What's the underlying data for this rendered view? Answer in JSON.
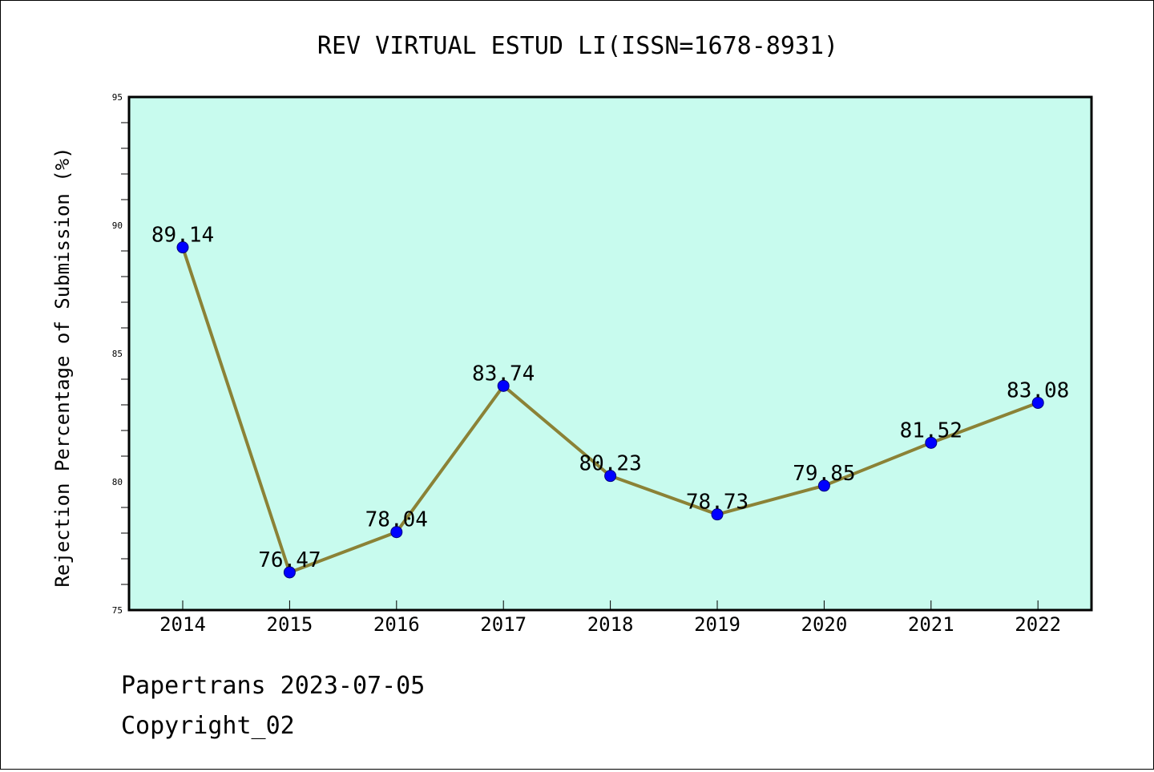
{
  "chart_data": {
    "type": "line",
    "title": "REV VIRTUAL ESTUD LI(ISSN=1678-8931)",
    "xlabel": "",
    "ylabel": "Rejection Percentage of Submission (%)",
    "categories": [
      "2014",
      "2015",
      "2016",
      "2017",
      "2018",
      "2019",
      "2020",
      "2021",
      "2022"
    ],
    "series": [
      {
        "name": "Rejection Percentage",
        "values": [
          89.14,
          76.47,
          78.04,
          83.74,
          80.23,
          78.73,
          79.85,
          81.52,
          83.08
        ],
        "labels": [
          "89.14",
          "76.47",
          "78.04",
          "83.74",
          "80.23",
          "78.73",
          "79.85",
          "81.52",
          "83.08"
        ]
      }
    ],
    "ylim": [
      75,
      95
    ],
    "yticks": [
      "75",
      "80",
      "85",
      "90",
      "95"
    ],
    "grid": false,
    "legend": "none"
  },
  "footer": {
    "line1": "Papertrans 2023-07-05",
    "line2": "Copyright_02"
  },
  "colors": {
    "plot_background": "#c8fbee",
    "line": "#8b8236",
    "marker": "#0000ff",
    "axis": "#000000"
  }
}
